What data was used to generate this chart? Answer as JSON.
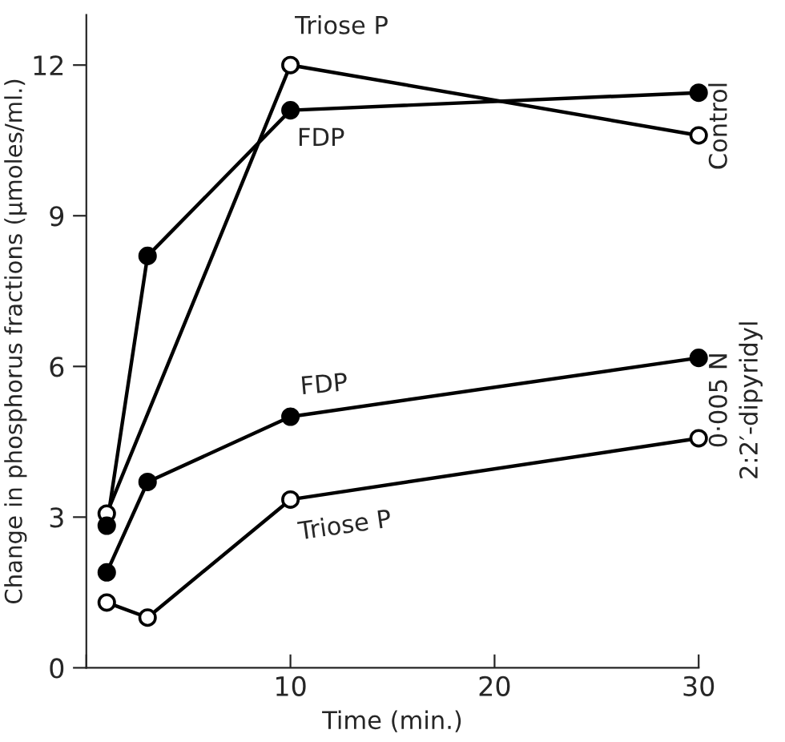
{
  "chart_data": {
    "type": "line",
    "xlabel": "Time (min.)",
    "ylabel": "Change in phosphorus fractions (μmoles/ml.)",
    "x": [
      1,
      3,
      10,
      30
    ],
    "series": [
      {
        "name": "Triose P",
        "color": "#000000",
        "x": [
          1,
          10,
          30
        ],
        "colors": [
          "#ffffff",
          "#ffffff",
          "#ffffff"
        ],
        "values": [
          3.07,
          12.0,
          10.6
        ]
      },
      {
        "name": "FDP",
        "color": "#000000",
        "colors": [
          "#000000",
          "#000000",
          "#000000",
          "#000000"
        ],
        "values": [
          2.83,
          8.2,
          11.1,
          11.45
        ]
      },
      {
        "name": "FDP",
        "color": "#000000",
        "colors": [
          "#000000",
          "#000000",
          "#000000",
          "#000000"
        ],
        "values": [
          1.9,
          3.7,
          5.0,
          6.17
        ]
      },
      {
        "name": "Triose P",
        "color": "#000000",
        "colors": [
          "#ffffff",
          "#ffffff",
          "#ffffff",
          "#ffffff"
        ],
        "values": [
          1.3,
          1.0,
          3.35,
          4.57
        ]
      }
    ],
    "annotations": [
      "Control",
      "0·005 N",
      "2:2′-dipyridyl"
    ],
    "xlim": [
      0,
      30
    ],
    "ylim": [
      0,
      13
    ],
    "xticks": [
      {
        "value": 0,
        "label": null
      },
      10,
      20,
      30
    ],
    "yticks": [
      0,
      3,
      6,
      9,
      12
    ],
    "marker": "circle",
    "line_style": "solid",
    "grid": false,
    "legend": false
  }
}
